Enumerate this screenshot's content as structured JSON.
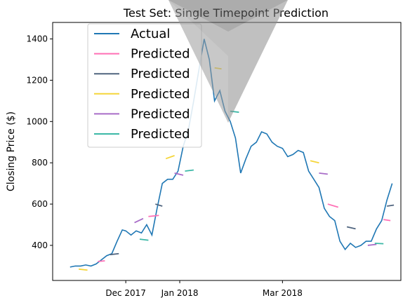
{
  "chart_data": {
    "type": "line",
    "title": "Test Set: Single Timepoint Prediction",
    "xlabel": "",
    "ylabel": "Closing Price ($)",
    "ylim": [
      230,
      1480
    ],
    "xlim": [
      "2017-10-20",
      "2018-05-08"
    ],
    "x_ticks": [
      "Dec 2017",
      "Jan 2018",
      "Mar 2018"
    ],
    "x_tick_dates": [
      "2017-12-01",
      "2018-01-01",
      "2018-03-01"
    ],
    "y_ticks": [
      400,
      600,
      800,
      1000,
      1200,
      1400
    ],
    "grid": false,
    "legend_position": "upper-left",
    "colors": {
      "actual": "#1f77b4",
      "pred1": "#ff6fb5",
      "pred2": "#50657f",
      "pred3": "#f5d53a",
      "pred4": "#a86cc8",
      "pred5": "#3bb8a6"
    },
    "series": [
      {
        "name": "Actual",
        "color": "#1f77b4",
        "x": [
          "2017-10-30",
          "2017-11-02",
          "2017-11-05",
          "2017-11-08",
          "2017-11-11",
          "2017-11-14",
          "2017-11-17",
          "2017-11-20",
          "2017-11-23",
          "2017-11-26",
          "2017-11-29",
          "2017-12-01",
          "2017-12-04",
          "2017-12-07",
          "2017-12-10",
          "2017-12-13",
          "2017-12-16",
          "2017-12-19",
          "2017-12-22",
          "2017-12-25",
          "2017-12-28",
          "2017-12-31",
          "2018-01-03",
          "2018-01-06",
          "2018-01-09",
          "2018-01-12",
          "2018-01-15",
          "2018-01-18",
          "2018-01-21",
          "2018-01-24",
          "2018-01-27",
          "2018-01-30",
          "2018-02-02",
          "2018-02-05",
          "2018-02-08",
          "2018-02-11",
          "2018-02-14",
          "2018-02-17",
          "2018-02-20",
          "2018-02-23",
          "2018-02-26",
          "2018-03-01",
          "2018-03-04",
          "2018-03-07",
          "2018-03-10",
          "2018-03-13",
          "2018-03-16",
          "2018-03-19",
          "2018-03-22",
          "2018-03-25",
          "2018-03-28",
          "2018-03-31",
          "2018-04-03",
          "2018-04-06",
          "2018-04-09",
          "2018-04-12",
          "2018-04-15",
          "2018-04-18",
          "2018-04-21",
          "2018-04-24",
          "2018-04-27",
          "2018-04-30",
          "2018-05-03"
        ],
        "values": [
          295,
          300,
          300,
          305,
          300,
          310,
          330,
          350,
          360,
          420,
          475,
          470,
          450,
          470,
          460,
          500,
          450,
          580,
          700,
          720,
          720,
          760,
          880,
          960,
          1100,
          1250,
          1400,
          1300,
          1100,
          1150,
          1050,
          1000,
          920,
          750,
          820,
          880,
          900,
          950,
          940,
          900,
          880,
          870,
          830,
          840,
          860,
          850,
          760,
          720,
          680,
          580,
          540,
          520,
          420,
          380,
          410,
          390,
          400,
          420,
          420,
          480,
          520,
          620,
          700
        ]
      },
      {
        "name": "Predicted",
        "color": "#ff6fb5",
        "x": [
          "2017-11-15",
          "2017-11-19",
          "2017-12-14",
          "2017-12-20",
          "2018-03-27",
          "2018-04-02",
          "2018-04-28",
          "2018-05-02"
        ],
        "values": [
          322,
          325,
          540,
          545,
          600,
          585,
          525,
          520
        ]
      },
      {
        "name": "Predicted",
        "color": "#50657f",
        "x": [
          "2017-11-22",
          "2017-11-27",
          "2017-12-18",
          "2017-12-22",
          "2018-04-07",
          "2018-04-12",
          "2018-04-30",
          "2018-05-04"
        ],
        "values": [
          355,
          360,
          600,
          590,
          490,
          480,
          590,
          595
        ]
      },
      {
        "name": "Predicted",
        "color": "#f5d53a",
        "x": [
          "2017-11-04",
          "2017-11-09",
          "2017-12-24",
          "2017-12-29",
          "2018-01-21",
          "2018-01-25",
          "2018-03-17",
          "2018-03-22"
        ],
        "values": [
          285,
          280,
          820,
          835,
          1260,
          1255,
          810,
          800
        ]
      },
      {
        "name": "Predicted",
        "color": "#a86cc8",
        "x": [
          "2017-12-06",
          "2017-12-11",
          "2017-12-29",
          "2018-01-03",
          "2018-03-22",
          "2018-03-27",
          "2018-04-19",
          "2018-04-24"
        ],
        "values": [
          510,
          530,
          750,
          740,
          750,
          745,
          400,
          405
        ]
      },
      {
        "name": "Predicted",
        "color": "#3bb8a6",
        "x": [
          "2017-12-09",
          "2017-12-14",
          "2018-01-04",
          "2018-01-09",
          "2018-01-30",
          "2018-02-04",
          "2018-04-23",
          "2018-04-28"
        ],
        "values": [
          430,
          425,
          760,
          765,
          1050,
          1045,
          410,
          408
        ]
      }
    ]
  }
}
